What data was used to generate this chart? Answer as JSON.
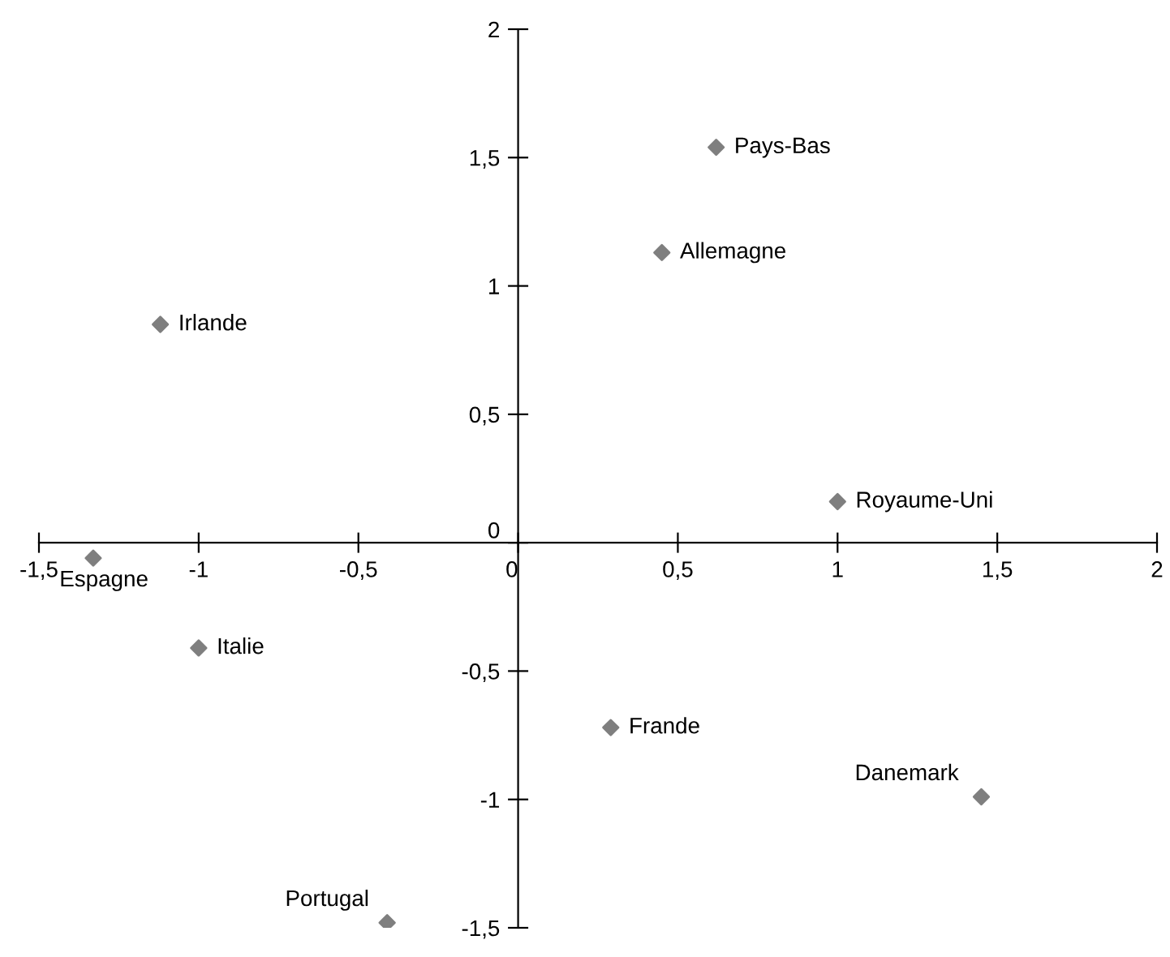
{
  "chart_data": {
    "type": "scatter",
    "series": [
      {
        "color": "#7f7f7f",
        "x": [
          0.62,
          0.45,
          -1.12,
          1.0,
          -1.33,
          -1.0,
          0.29,
          1.45,
          -0.41
        ],
        "values": [
          1.54,
          1.13,
          0.85,
          0.16,
          -0.06,
          -0.41,
          -0.72,
          -0.99,
          -1.48
        ]
      }
    ],
    "marker": "diamond",
    "xlim": [
      -1.5,
      2
    ],
    "ylim": [
      -1.5,
      2
    ],
    "xticks": [
      {
        "value": -1.5,
        "label": "-1,5"
      },
      -1,
      {
        "value": -0.5,
        "label": "-0,5"
      },
      0,
      {
        "value": 0.5,
        "label": "0,5"
      },
      1,
      {
        "value": 1.5,
        "label": "1,5"
      },
      2
    ],
    "yticks": [
      {
        "value": -1.5,
        "label": "-1,5"
      },
      -1,
      {
        "value": -0.5,
        "label": "-0,5"
      },
      0,
      {
        "value": 0.5,
        "label": "0,5"
      },
      1,
      {
        "value": 1.5,
        "label": "1,5"
      },
      2
    ],
    "grid": false,
    "legend": false,
    "annotations": [
      {
        "text": "Pays-Bas",
        "x": 0.62,
        "y": 1.54
      },
      {
        "text": "Allemagne",
        "x": 0.45,
        "y": 1.13
      },
      {
        "text": "Irlande",
        "x": -1.12,
        "y": 0.85
      },
      {
        "text": "Royaume-Uni",
        "x": 1.0,
        "y": 0.16
      },
      {
        "text": "Espagne",
        "x": -1.33,
        "y": -0.06
      },
      {
        "text": "Italie",
        "x": -1.0,
        "y": -0.41
      },
      {
        "text": "Frande",
        "x": 0.29,
        "y": -0.72
      },
      {
        "text": "Danemark",
        "x": 1.45,
        "y": -0.99
      },
      {
        "text": "Portugal",
        "x": -0.41,
        "y": -1.48
      }
    ]
  }
}
